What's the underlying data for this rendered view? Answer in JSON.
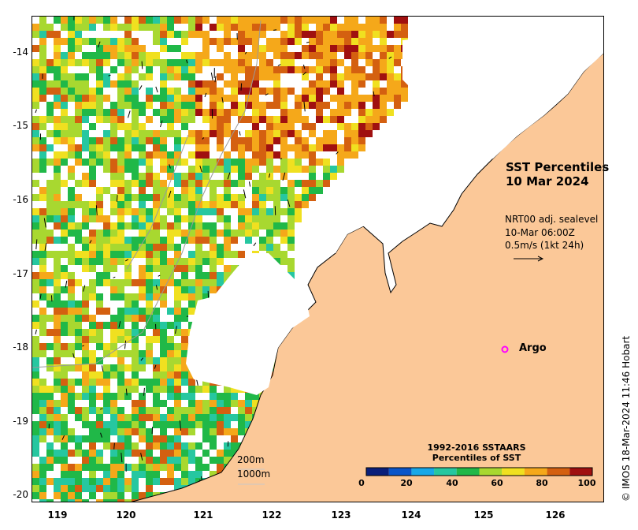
{
  "map": {
    "title_line1": "SST Percentiles",
    "title_line2": "10 Mar 2024",
    "velocity": {
      "line1": "NRT00 adj. sealevel",
      "line2": "10-Mar 06:00Z",
      "line3": "0.5m/s (1kt 24h)"
    },
    "argo_label": "Argo",
    "argo_marker": "o",
    "credit": "© IMOS 18-Mar-2024 11:46 Hobart",
    "y_ticks": [
      "-14",
      "-15",
      "-16",
      "-17",
      "-18",
      "-19",
      "-20"
    ],
    "x_ticks": [
      "119",
      "120",
      "121",
      "122",
      "123",
      "124",
      "125",
      "126"
    ],
    "depth_labels": [
      "200m",
      "1000m"
    ],
    "legend": {
      "title_line1": "1992-2016 SSTAARS",
      "title_line2": "Percentiles of SST",
      "ticks": [
        "0",
        "20",
        "40",
        "60",
        "80",
        "100"
      ],
      "colors": [
        "#0a1f7a",
        "#0a55c8",
        "#18a8e8",
        "#26c7a0",
        "#20b848",
        "#a8d830",
        "#f0e020",
        "#f5a81a",
        "#d46010",
        "#a01010"
      ]
    },
    "land_color": "#fbc898",
    "argo_color": "#ff00ff"
  }
}
